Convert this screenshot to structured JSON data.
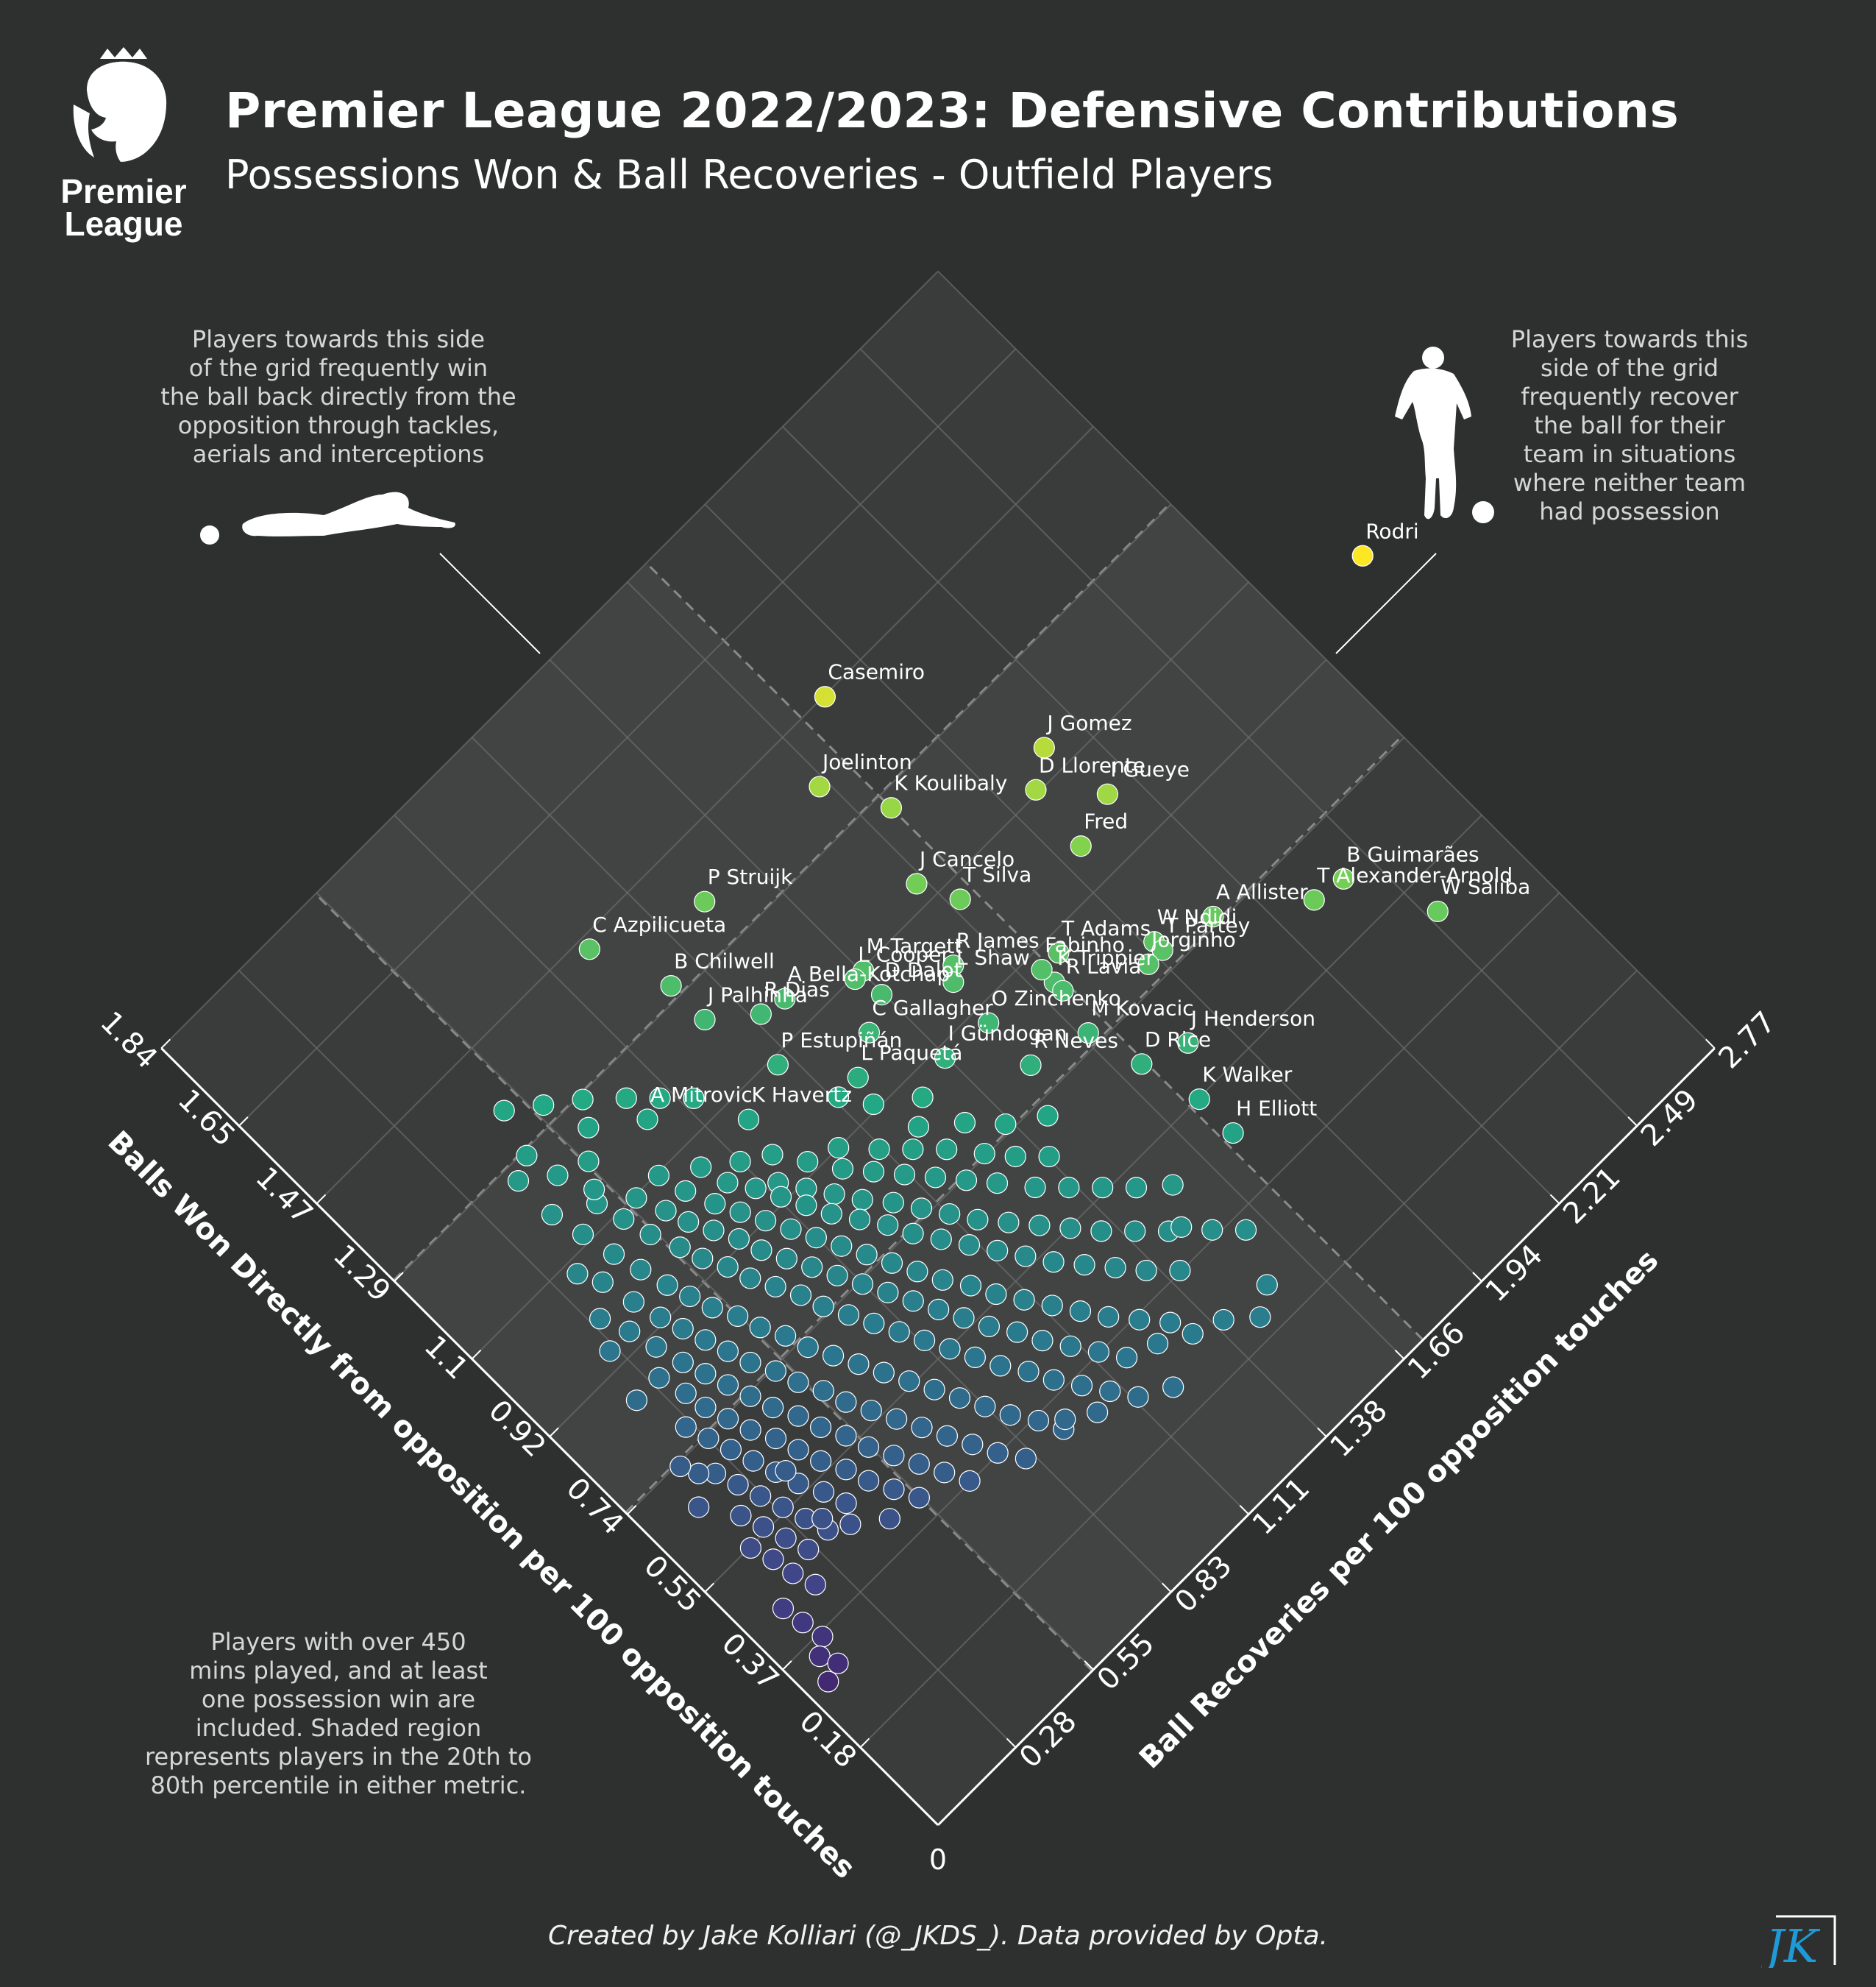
{
  "header": {
    "title": "Premier League 2022/2023: Defensive Contributions",
    "subtitle": "Possessions Won & Ball Recoveries - Outfield Players",
    "logo_text_line1": "Premier",
    "logo_text_line2": "League"
  },
  "notes": {
    "left": "Players towards this side\nof the grid frequently win\nthe ball back directly from the\nopposition through tackles,\naerials and interceptions",
    "right": "Players towards this\nside of the grid\nfrequently recover\nthe ball for their\nteam in situations\nwhere neither team\nhad possession",
    "bottom": "Players with over 450\nmins played, and at least\none possession win are\nincluded. Shaded region\nrepresents players in the 20th to\n80th percentile in either metric."
  },
  "footer": {
    "credit": "Created by Jake Kolliari (@_JKDS_). Data provided by Opta.",
    "brand": "JK"
  },
  "colors": {
    "background": "#2e3030",
    "panel": "#3a3b3b",
    "shaded_region": "#424343",
    "grid": "#6b6c6c",
    "axis": "#ffffff"
  },
  "chart_data": {
    "type": "scatter",
    "title": "Premier League 2022/2023: Defensive Contributions",
    "xlabel": "Balls Won Directly from opposition per 100 opposition touches",
    "ylabel": "Ball Recoveries per 100 opposition touches",
    "origin_label": "0",
    "x_ticks": [
      "0.18",
      "0.37",
      "0.55",
      "0.74",
      "0.92",
      "1.1",
      "1.29",
      "1.47",
      "1.65",
      "1.84"
    ],
    "y_ticks": [
      "0.28",
      "0.55",
      "0.83",
      "1.11",
      "1.38",
      "1.66",
      "1.94",
      "2.21",
      "2.49",
      "2.77"
    ],
    "xlim": [
      0,
      1.84
    ],
    "ylim": [
      0,
      2.77
    ],
    "shaded_x_range": [
      0.74,
      1.29
    ],
    "shaded_y_range": [
      0.55,
      1.73
    ],
    "colormap": [
      "#440154",
      "#414487",
      "#2a788e",
      "#22a884",
      "#7ad151",
      "#fde725"
    ],
    "labeled_players": [
      {
        "name": "Rodri",
        "x": 1.0,
        "y": 3.02
      },
      {
        "name": "J Gomez",
        "x": 1.15,
        "y": 2.11
      },
      {
        "name": "I Gueye",
        "x": 1.02,
        "y": 2.14
      },
      {
        "name": "D Llorente",
        "x": 1.11,
        "y": 2.02
      },
      {
        "name": "Fred",
        "x": 0.99,
        "y": 2.0
      },
      {
        "name": "Casemiro",
        "x": 1.47,
        "y": 1.81
      },
      {
        "name": "K Koulibaly",
        "x": 1.26,
        "y": 1.73
      },
      {
        "name": "Joelinton",
        "x": 1.37,
        "y": 1.64
      },
      {
        "name": "A Allister",
        "x": 0.75,
        "y": 2.11
      },
      {
        "name": "B Guimarães",
        "x": 0.64,
        "y": 2.41
      },
      {
        "name": "T Alexander-Arnold",
        "x": 0.65,
        "y": 2.32
      },
      {
        "name": "W Saliba",
        "x": 0.49,
        "y": 2.52
      },
      {
        "name": "J Cancelo",
        "x": 1.14,
        "y": 1.64
      },
      {
        "name": "T Silva",
        "x": 1.07,
        "y": 1.69
      },
      {
        "name": "W Ndidi",
        "x": 0.79,
        "y": 1.96
      },
      {
        "name": "T Partey",
        "x": 0.77,
        "y": 1.96
      },
      {
        "name": "P Struijk",
        "x": 1.37,
        "y": 1.23
      },
      {
        "name": "M Targett",
        "x": 1.1,
        "y": 1.39
      },
      {
        "name": "T Adams",
        "x": 0.89,
        "y": 1.77
      },
      {
        "name": "R James",
        "x": 1.0,
        "y": 1.56
      },
      {
        "name": "L Cooper",
        "x": 1.1,
        "y": 1.36
      },
      {
        "name": "Jorginho",
        "x": 0.77,
        "y": 1.91
      },
      {
        "name": "K Trippier",
        "x": 0.86,
        "y": 1.71
      },
      {
        "name": "A Bella-Kotchap",
        "x": 1.16,
        "y": 1.2
      },
      {
        "name": "L Shaw",
        "x": 0.98,
        "y": 1.53
      },
      {
        "name": "Fabinho",
        "x": 0.89,
        "y": 1.71
      },
      {
        "name": "R Lavia",
        "x": 0.84,
        "y": 1.71
      },
      {
        "name": "C Azpilicueta",
        "x": 1.45,
        "y": 0.94
      },
      {
        "name": "B Chilwell",
        "x": 1.31,
        "y": 1.02
      },
      {
        "name": "D Dalot",
        "x": 1.05,
        "y": 1.38
      },
      {
        "name": "R Dias",
        "x": 1.17,
        "y": 1.13
      },
      {
        "name": "J Palhinha",
        "x": 1.23,
        "y": 1.02
      },
      {
        "name": "C Gallagher",
        "x": 1.02,
        "y": 1.29
      },
      {
        "name": "O Zinchenko",
        "x": 0.89,
        "y": 1.52
      },
      {
        "name": "M Kovacic",
        "x": 0.76,
        "y": 1.68
      },
      {
        "name": "J Henderson",
        "x": 0.63,
        "y": 1.84
      },
      {
        "name": "P Estupiñán",
        "x": 1.09,
        "y": 1.07
      },
      {
        "name": "I Gündogan",
        "x": 0.9,
        "y": 1.38
      },
      {
        "name": "L Paquetá",
        "x": 0.98,
        "y": 1.19
      },
      {
        "name": "R Neves",
        "x": 0.79,
        "y": 1.52
      },
      {
        "name": "D Rice",
        "x": 0.66,
        "y": 1.72
      },
      {
        "name": "K Walker",
        "x": 0.55,
        "y": 1.76
      },
      {
        "name": "A Mitrovic",
        "x": 1.18,
        "y": 0.74
      },
      {
        "name": "K Havertz",
        "x": 1.06,
        "y": 0.92
      },
      {
        "name": "H Elliott",
        "x": 0.47,
        "y": 1.76
      }
    ],
    "other_players": [
      [
        0.98,
        1.12
      ],
      [
        0.93,
        1.17
      ],
      [
        0.88,
        1.27
      ],
      [
        0.85,
        1.21
      ],
      [
        0.8,
        1.3
      ],
      [
        0.75,
        1.37
      ],
      [
        0.71,
        1.46
      ],
      [
        0.92,
        1.03
      ],
      [
        0.87,
        1.1
      ],
      [
        0.83,
        1.16
      ],
      [
        0.79,
        1.22
      ],
      [
        0.74,
        1.28
      ],
      [
        0.7,
        1.33
      ],
      [
        0.66,
        1.39
      ],
      [
        0.94,
        0.95
      ],
      [
        0.89,
        1.0
      ],
      [
        0.85,
        1.05
      ],
      [
        0.81,
        1.1
      ],
      [
        0.77,
        1.15
      ],
      [
        0.73,
        1.2
      ],
      [
        0.69,
        1.25
      ],
      [
        0.64,
        1.31
      ],
      [
        0.6,
        1.37
      ],
      [
        0.56,
        1.43
      ],
      [
        0.52,
        1.49
      ],
      [
        0.48,
        1.56
      ],
      [
        0.95,
        0.86
      ],
      [
        0.91,
        0.9
      ],
      [
        0.87,
        0.94
      ],
      [
        0.83,
        0.98
      ],
      [
        0.79,
        1.03
      ],
      [
        0.75,
        1.07
      ],
      [
        0.71,
        1.11
      ],
      [
        0.67,
        1.15
      ],
      [
        0.63,
        1.2
      ],
      [
        0.59,
        1.25
      ],
      [
        0.55,
        1.3
      ],
      [
        0.51,
        1.35
      ],
      [
        0.47,
        1.41
      ],
      [
        0.43,
        1.47
      ],
      [
        1.01,
        0.77
      ],
      [
        0.97,
        0.81
      ],
      [
        0.93,
        0.84
      ],
      [
        0.89,
        0.87
      ],
      [
        0.85,
        0.9
      ],
      [
        0.81,
        0.94
      ],
      [
        0.77,
        0.98
      ],
      [
        0.73,
        1.01
      ],
      [
        0.69,
        1.05
      ],
      [
        0.65,
        1.09
      ],
      [
        0.61,
        1.13
      ],
      [
        0.57,
        1.17
      ],
      [
        0.53,
        1.21
      ],
      [
        0.49,
        1.26
      ],
      [
        0.45,
        1.31
      ],
      [
        0.41,
        1.36
      ],
      [
        0.37,
        1.42
      ],
      [
        1.05,
        0.68
      ],
      [
        1.0,
        0.71
      ],
      [
        0.96,
        0.74
      ],
      [
        0.92,
        0.77
      ],
      [
        0.88,
        0.8
      ],
      [
        0.84,
        0.83
      ],
      [
        0.8,
        0.86
      ],
      [
        0.76,
        0.89
      ],
      [
        0.72,
        0.92
      ],
      [
        0.68,
        0.95
      ],
      [
        0.64,
        0.98
      ],
      [
        0.6,
        1.02
      ],
      [
        0.56,
        1.05
      ],
      [
        0.52,
        1.09
      ],
      [
        0.48,
        1.13
      ],
      [
        0.44,
        1.17
      ],
      [
        0.4,
        1.21
      ],
      [
        0.36,
        1.26
      ],
      [
        0.32,
        1.31
      ],
      [
        1.1,
        0.58
      ],
      [
        1.05,
        0.61
      ],
      [
        1.01,
        0.63
      ],
      [
        0.97,
        0.66
      ],
      [
        0.93,
        0.69
      ],
      [
        0.89,
        0.71
      ],
      [
        0.85,
        0.74
      ],
      [
        0.81,
        0.77
      ],
      [
        0.77,
        0.8
      ],
      [
        0.73,
        0.83
      ],
      [
        0.69,
        0.86
      ],
      [
        0.65,
        0.89
      ],
      [
        0.61,
        0.92
      ],
      [
        0.57,
        0.95
      ],
      [
        0.53,
        0.98
      ],
      [
        0.49,
        1.02
      ],
      [
        0.45,
        1.05
      ],
      [
        0.41,
        1.09
      ],
      [
        0.37,
        1.13
      ],
      [
        0.33,
        1.17
      ],
      [
        1.14,
        0.5
      ],
      [
        1.09,
        0.52
      ],
      [
        1.04,
        0.54
      ],
      [
        0.99,
        0.57
      ],
      [
        0.95,
        0.59
      ],
      [
        0.91,
        0.62
      ],
      [
        0.87,
        0.64
      ],
      [
        0.83,
        0.67
      ],
      [
        0.79,
        0.7
      ],
      [
        0.75,
        0.72
      ],
      [
        0.71,
        0.75
      ],
      [
        0.67,
        0.78
      ],
      [
        0.63,
        0.81
      ],
      [
        0.59,
        0.84
      ],
      [
        0.55,
        0.87
      ],
      [
        0.51,
        0.9
      ],
      [
        0.47,
        0.93
      ],
      [
        0.43,
        0.97
      ],
      [
        0.39,
        1.0
      ],
      [
        0.35,
        1.04
      ],
      [
        0.31,
        1.08
      ],
      [
        1.12,
        0.42
      ],
      [
        1.06,
        0.44
      ],
      [
        1.01,
        0.46
      ],
      [
        0.96,
        0.48
      ],
      [
        0.92,
        0.5
      ],
      [
        0.88,
        0.52
      ],
      [
        0.84,
        0.55
      ],
      [
        0.8,
        0.57
      ],
      [
        0.76,
        0.6
      ],
      [
        0.72,
        0.62
      ],
      [
        0.68,
        0.65
      ],
      [
        0.64,
        0.68
      ],
      [
        0.6,
        0.71
      ],
      [
        0.56,
        0.74
      ],
      [
        0.52,
        0.77
      ],
      [
        0.48,
        0.8
      ],
      [
        0.44,
        0.83
      ],
      [
        0.4,
        0.86
      ],
      [
        0.36,
        0.9
      ],
      [
        0.32,
        0.93
      ],
      [
        1.04,
        0.37
      ],
      [
        0.98,
        0.39
      ],
      [
        0.93,
        0.41
      ],
      [
        0.89,
        0.43
      ],
      [
        0.85,
        0.45
      ],
      [
        0.81,
        0.47
      ],
      [
        0.77,
        0.49
      ],
      [
        0.73,
        0.52
      ],
      [
        0.69,
        0.54
      ],
      [
        0.65,
        0.57
      ],
      [
        0.61,
        0.59
      ],
      [
        0.57,
        0.62
      ],
      [
        0.53,
        0.65
      ],
      [
        0.49,
        0.68
      ],
      [
        0.45,
        0.71
      ],
      [
        0.41,
        0.74
      ],
      [
        0.37,
        0.77
      ],
      [
        0.33,
        0.81
      ],
      [
        0.95,
        0.33
      ],
      [
        0.9,
        0.35
      ],
      [
        0.85,
        0.37
      ],
      [
        0.81,
        0.39
      ],
      [
        0.77,
        0.41
      ],
      [
        0.73,
        0.43
      ],
      [
        0.69,
        0.45
      ],
      [
        0.65,
        0.48
      ],
      [
        0.61,
        0.5
      ],
      [
        0.57,
        0.53
      ],
      [
        0.53,
        0.55
      ],
      [
        0.49,
        0.58
      ],
      [
        0.45,
        0.61
      ],
      [
        0.41,
        0.64
      ],
      [
        0.37,
        0.67
      ],
      [
        0.86,
        0.3
      ],
      [
        0.81,
        0.32
      ],
      [
        0.77,
        0.33
      ],
      [
        0.73,
        0.35
      ],
      [
        0.69,
        0.37
      ],
      [
        0.65,
        0.4
      ],
      [
        0.61,
        0.42
      ],
      [
        0.57,
        0.44
      ],
      [
        0.53,
        0.47
      ],
      [
        0.49,
        0.49
      ],
      [
        0.45,
        0.52
      ],
      [
        0.41,
        0.55
      ],
      [
        0.77,
        0.26
      ],
      [
        0.73,
        0.28
      ],
      [
        0.69,
        0.3
      ],
      [
        0.65,
        0.32
      ],
      [
        0.61,
        0.34
      ],
      [
        0.57,
        0.36
      ],
      [
        0.53,
        0.39
      ],
      [
        0.49,
        0.41
      ],
      [
        0.68,
        0.23
      ],
      [
        0.64,
        0.25
      ],
      [
        0.6,
        0.27
      ],
      [
        0.56,
        0.29
      ],
      [
        0.52,
        0.31
      ],
      [
        0.48,
        0.33
      ],
      [
        0.6,
        0.2
      ],
      [
        0.56,
        0.22
      ],
      [
        0.52,
        0.24
      ],
      [
        0.48,
        0.26
      ],
      [
        0.55,
        0.16
      ],
      [
        0.51,
        0.18
      ],
      [
        0.47,
        0.19
      ],
      [
        0.43,
        0.21
      ],
      [
        0.44,
        0.11
      ],
      [
        0.4,
        0.12
      ],
      [
        0.36,
        0.13
      ],
      [
        0.34,
        0.09
      ],
      [
        0.31,
        0.11
      ],
      [
        0.3,
        0.06
      ],
      [
        1.23,
        0.74
      ],
      [
        1.19,
        0.8
      ],
      [
        1.15,
        0.86
      ],
      [
        1.28,
        0.66
      ],
      [
        1.24,
        0.62
      ],
      [
        1.2,
        0.56
      ],
      [
        1.16,
        0.52
      ],
      [
        1.32,
        0.58
      ],
      [
        1.36,
        0.5
      ],
      [
        1.28,
        0.46
      ],
      [
        0.31,
        1.25
      ],
      [
        0.28,
        1.33
      ],
      [
        0.26,
        1.41
      ],
      [
        0.24,
        1.2
      ],
      [
        0.27,
        1.12
      ],
      [
        0.3,
        1.02
      ],
      [
        0.33,
        0.95
      ],
      [
        0.22,
        1.48
      ],
      [
        0.25,
        1.55
      ],
      [
        0.34,
        1.61
      ],
      [
        0.38,
        1.55
      ],
      [
        0.42,
        1.5
      ],
      [
        0.6,
        0.36
      ],
      [
        0.7,
        0.2
      ],
      [
        0.42,
        0.46
      ],
      [
        0.46,
        0.38
      ],
      [
        0.5,
        0.34
      ],
      [
        0.66,
        0.14
      ],
      [
        0.73,
        0.18
      ],
      [
        0.86,
        0.22
      ],
      [
        0.95,
        0.26
      ],
      [
        1.0,
        0.3
      ],
      [
        1.08,
        0.34
      ],
      [
        1.18,
        0.4
      ],
      [
        1.26,
        0.4
      ],
      [
        1.22,
        0.48
      ],
      [
        1.1,
        0.66
      ],
      [
        1.06,
        0.75
      ],
      [
        1.02,
        0.83
      ],
      [
        0.99,
        0.9
      ]
    ]
  }
}
